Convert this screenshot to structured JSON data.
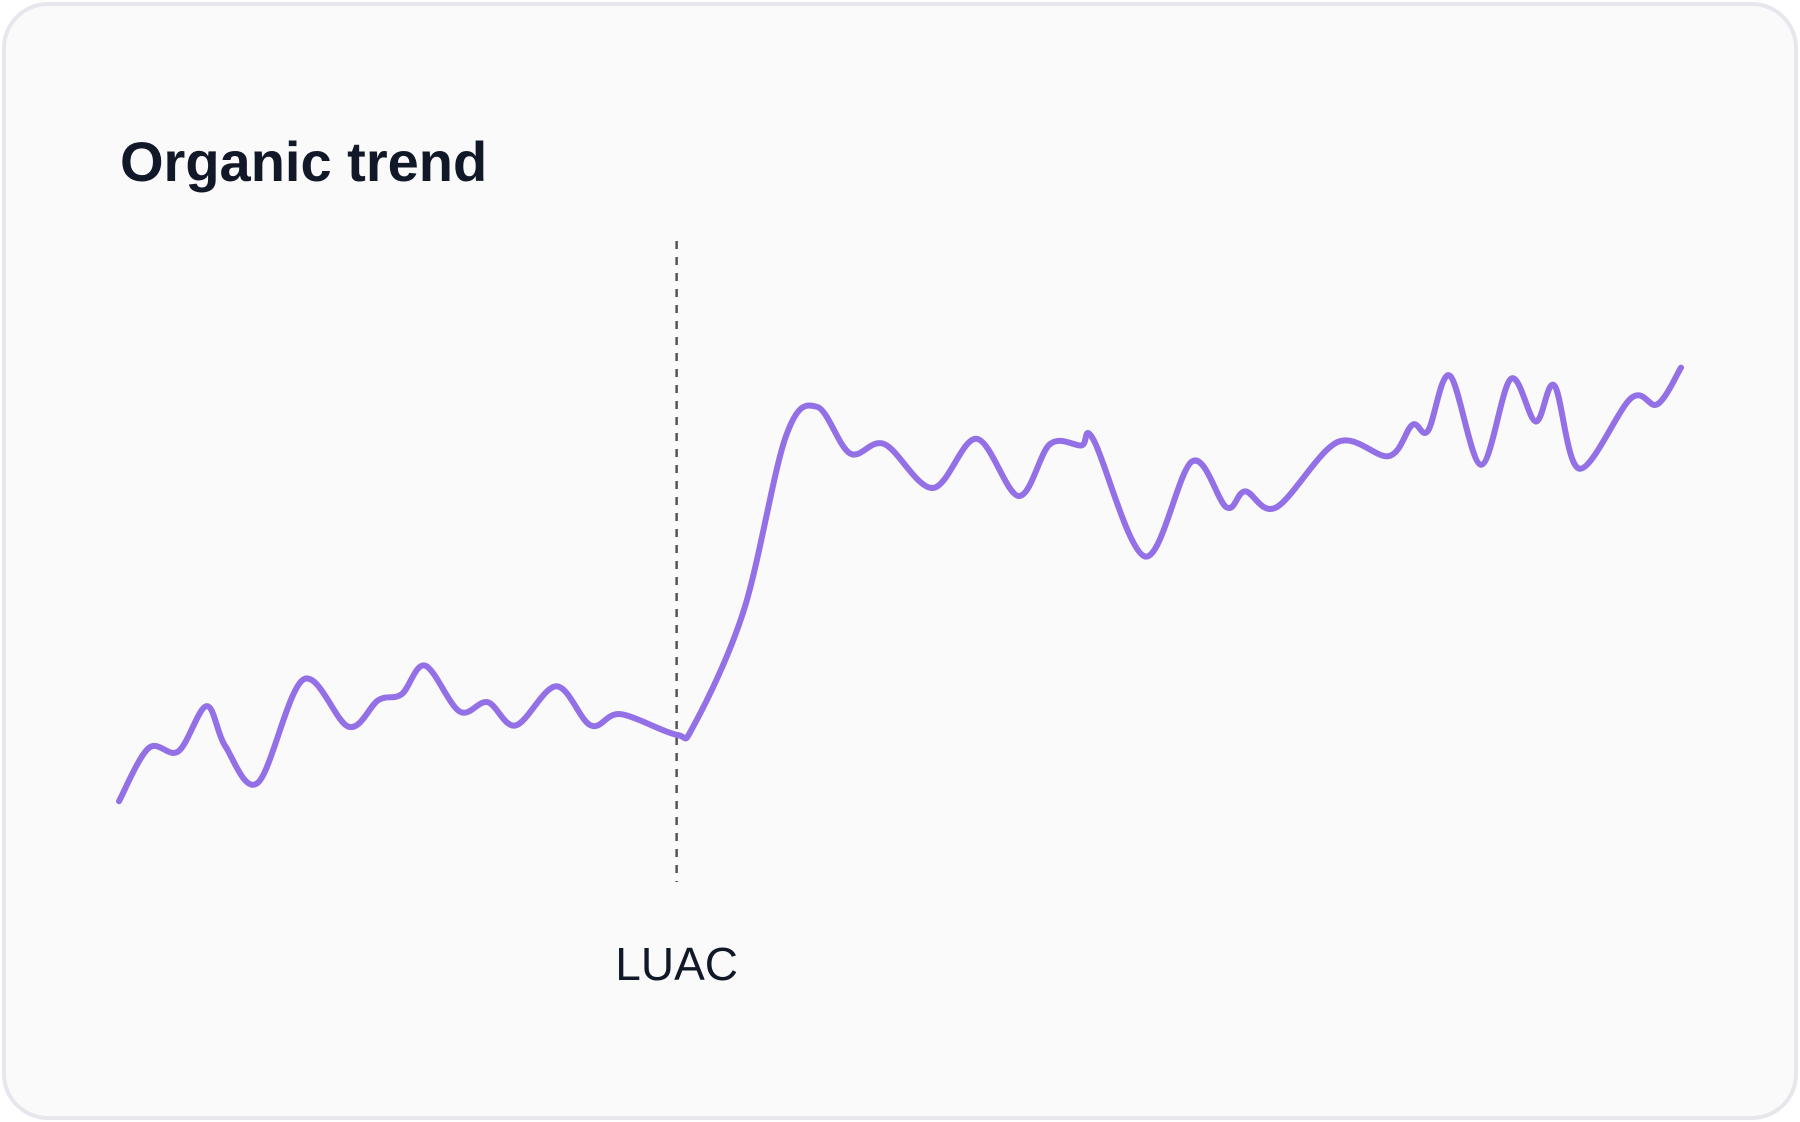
{
  "chart_data": {
    "type": "line",
    "title": "Organic trend",
    "x": [
      0,
      1.9,
      3.8,
      5.6,
      6.8,
      8.9,
      11.8,
      14.7,
      16.6,
      18.1,
      19.6,
      21.8,
      23.6,
      25.4,
      28.0,
      30.2,
      32.1,
      35.7,
      36.8,
      40.0,
      42.7,
      44.7,
      46.8,
      49.0,
      52.1,
      54.9,
      57.6,
      59.6,
      61.6,
      62.4,
      65.7,
      68.7,
      70.9,
      72.1,
      74.1,
      78.0,
      81.3,
      82.8,
      83.8,
      85.2,
      87.2,
      89.1,
      90.7,
      91.9,
      93.5,
      96.8,
      98.5,
      100
    ],
    "series": [
      {
        "color": "#9370e6",
        "values": [
          14.1,
          22.1,
          21.6,
          28.4,
          22.4,
          16.9,
          32.4,
          25.3,
          29.3,
          30.2,
          34.5,
          27.6,
          29.0,
          25.5,
          31.4,
          25.5,
          27.2,
          24.1,
          25.5,
          42.8,
          69.0,
          73.4,
          66.4,
          67.8,
          61.2,
          68.6,
          60.0,
          67.8,
          67.6,
          68.4,
          50.9,
          65.2,
          58.3,
          60.7,
          58.3,
          68.1,
          66.0,
          70.7,
          69.8,
          78.1,
          64.7,
          77.6,
          71.2,
          76.6,
          64.1,
          74.7,
          73.8,
          79.3
        ]
      }
    ],
    "xlim": [
      0,
      100
    ],
    "ylim": [
      0,
      100
    ],
    "annotations": [
      {
        "x": 35.7,
        "label": "LUAC"
      }
    ]
  }
}
